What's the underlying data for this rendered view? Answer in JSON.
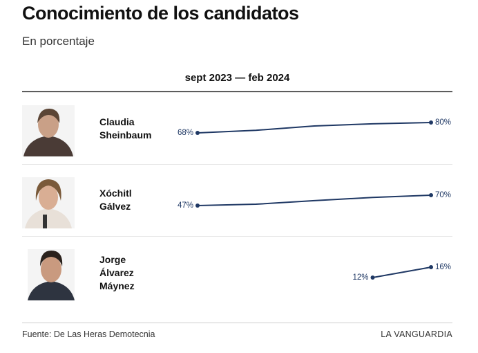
{
  "chart_data": {
    "type": "line",
    "title": "Conocimiento de los candidatos",
    "subtitle": "En porcentaje",
    "period": "sept 2023 — feb 2024",
    "series": [
      {
        "name": "Claudia Sheinbaum",
        "color": "#1f3864",
        "values": [
          68,
          71,
          76,
          78.5,
          80
        ],
        "value_labels": [
          "68%",
          null,
          null,
          null,
          "80%"
        ]
      },
      {
        "name": "Xóchitl Gálvez",
        "color": "#1f3864",
        "values": [
          47,
          50,
          58,
          65,
          70
        ],
        "value_labels": [
          "47%",
          null,
          null,
          null,
          "70%"
        ]
      },
      {
        "name": "Jorge Álvarez Máynez",
        "color": "#1f3864",
        "values": [
          null,
          null,
          null,
          12,
          16
        ],
        "value_labels": [
          null,
          null,
          null,
          "12%",
          "16%"
        ]
      }
    ],
    "source": "Fuente: De Las Heras Demotecnia",
    "credit": "LA VANGUARDIA"
  }
}
